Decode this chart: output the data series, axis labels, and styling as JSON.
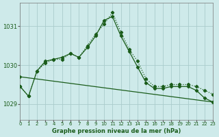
{
  "title": "Graphe pression niveau de la mer (hPa)",
  "background_color": "#ceeaea",
  "grid_color": "#aacccc",
  "line_color": "#1a5c1a",
  "xlim": [
    0,
    23
  ],
  "ylim": [
    1028.6,
    1031.6
  ],
  "yticks": [
    1029,
    1030,
    1031
  ],
  "xticks": [
    0,
    1,
    2,
    3,
    4,
    5,
    6,
    7,
    8,
    9,
    10,
    11,
    12,
    13,
    14,
    15,
    16,
    17,
    18,
    19,
    20,
    21,
    22,
    23
  ],
  "series1_x": [
    0,
    1,
    2,
    3,
    4,
    5,
    6,
    7,
    8,
    9,
    10,
    11,
    12,
    13,
    14,
    15,
    16,
    17,
    18,
    19,
    20,
    21,
    22,
    23
  ],
  "series1_y": [
    1029.45,
    1029.2,
    1029.85,
    1030.05,
    1030.15,
    1030.15,
    1030.3,
    1030.2,
    1030.5,
    1030.8,
    1031.05,
    1031.35,
    1030.85,
    1030.4,
    1030.1,
    1029.65,
    1029.45,
    1029.45,
    1029.5,
    1029.5,
    1029.5,
    1029.45,
    1029.35,
    1029.25
  ],
  "series2_x": [
    0,
    1,
    2,
    3,
    4,
    5,
    6,
    7,
    8,
    9,
    10,
    11,
    12,
    13,
    14,
    15,
    16,
    17,
    18,
    19,
    20,
    21,
    22,
    23
  ],
  "series2_y": [
    1029.45,
    1029.2,
    1029.85,
    1030.1,
    1030.15,
    1030.2,
    1030.3,
    1030.2,
    1030.45,
    1030.75,
    1031.15,
    1031.25,
    1030.75,
    1030.35,
    1029.95,
    1029.55,
    1029.4,
    1029.4,
    1029.45,
    1029.45,
    1029.45,
    1029.35,
    1029.15,
    1029.05
  ],
  "series3_x": [
    0,
    23
  ],
  "series3_y": [
    1029.7,
    1029.05
  ]
}
